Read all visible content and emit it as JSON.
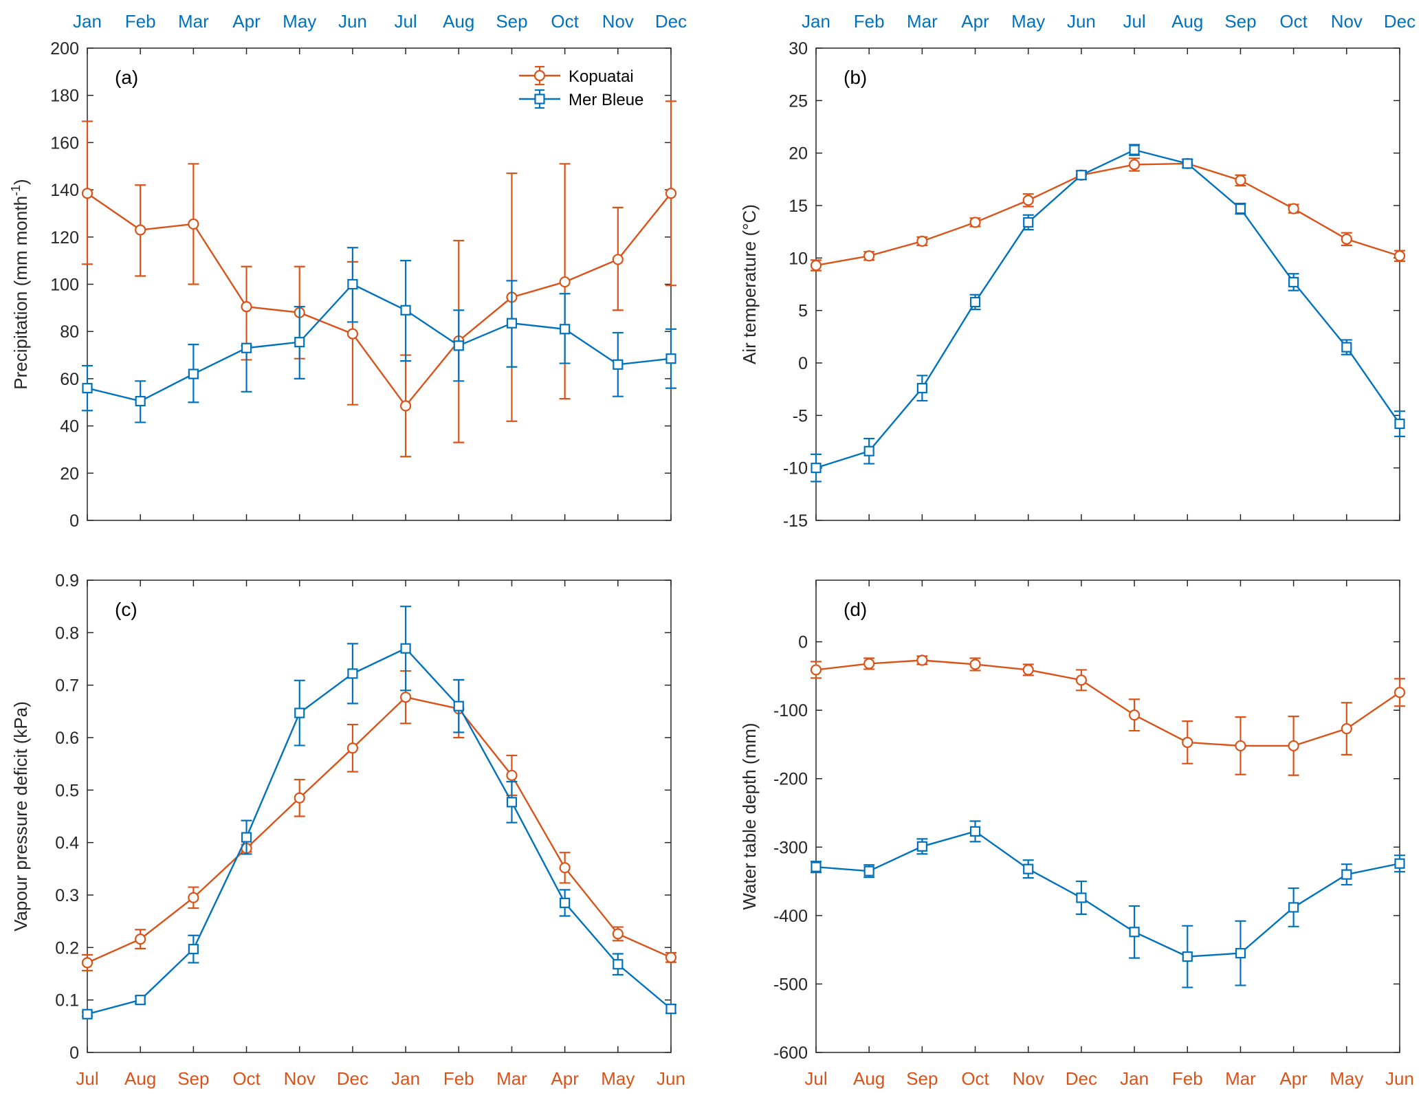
{
  "colors": {
    "kopuatai": "#d95319",
    "merbleue": "#0072bd",
    "axis": "#262626"
  },
  "legend": {
    "placement": "top-right of panel (a)",
    "entries": [
      "Kopuatai",
      "Mer Bleue"
    ]
  },
  "chart_data": [
    {
      "id": "a",
      "type": "line",
      "panel_label": "(a)",
      "ylabel": "Precipitation (mm month",
      "ylabel_sup": "-1",
      "ylabel_close": ")",
      "ylim": [
        0,
        200
      ],
      "yticks": [
        0,
        20,
        40,
        60,
        80,
        100,
        120,
        140,
        160,
        180,
        200
      ],
      "top_ticks": [
        "Jan",
        "Feb",
        "Mar",
        "Apr",
        "May",
        "Jun",
        "Jul",
        "Aug",
        "Sep",
        "Oct",
        "Nov",
        "Dec"
      ],
      "bottom_ticks": [],
      "grid": false,
      "series": [
        {
          "name": "Kopuatai",
          "marker": "circle",
          "values": [
            138.5,
            123,
            125.5,
            90.5,
            88,
            79,
            48.5,
            76,
            94.5,
            101,
            110.5,
            138.5
          ],
          "lower": [
            108.5,
            103.5,
            100,
            68,
            68.5,
            49,
            27,
            33,
            42,
            51.5,
            89,
            99.5
          ],
          "upper": [
            169,
            142,
            151,
            107.5,
            107.5,
            109.5,
            70,
            118.5,
            147,
            151,
            132.5,
            177.5
          ]
        },
        {
          "name": "Mer Bleue",
          "marker": "square",
          "values": [
            56,
            50.5,
            62,
            73,
            75.5,
            100,
            89,
            74,
            83.5,
            81,
            66,
            68.5
          ],
          "lower": [
            46.5,
            41.5,
            50,
            54.5,
            60,
            84,
            67.5,
            59,
            65,
            66.5,
            52.5,
            56
          ],
          "upper": [
            65.5,
            59,
            74.5,
            74,
            90.5,
            115.5,
            110,
            89,
            101.5,
            96,
            79.5,
            81
          ]
        }
      ]
    },
    {
      "id": "b",
      "type": "line",
      "panel_label": "(b)",
      "ylabel": "Air temperature (°C)",
      "ylim": [
        -15,
        30
      ],
      "yticks": [
        -15,
        -10,
        -5,
        0,
        5,
        10,
        15,
        20,
        25,
        30
      ],
      "top_ticks": [
        "Jan",
        "Feb",
        "Mar",
        "Apr",
        "May",
        "Jun",
        "Jul",
        "Aug",
        "Sep",
        "Oct",
        "Nov",
        "Dec"
      ],
      "bottom_ticks": [],
      "grid": false,
      "series": [
        {
          "name": "Kopuatai",
          "marker": "circle",
          "values": [
            9.3,
            10.2,
            11.6,
            13.4,
            15.5,
            17.9,
            18.9,
            19.0,
            17.4,
            14.7,
            11.8,
            10.2
          ],
          "lower": [
            8.8,
            9.8,
            11.2,
            13.0,
            14.9,
            17.5,
            18.3,
            18.6,
            16.9,
            14.3,
            11.2,
            9.7
          ],
          "upper": [
            9.8,
            10.6,
            12.0,
            13.8,
            16.1,
            18.3,
            19.5,
            19.4,
            17.9,
            15.1,
            12.4,
            10.7
          ]
        },
        {
          "name": "Mer Bleue",
          "marker": "square",
          "values": [
            -10.0,
            -8.4,
            -2.4,
            5.8,
            13.4,
            17.9,
            20.3,
            19.0,
            14.7,
            7.7,
            1.5,
            -5.8
          ],
          "lower": [
            -11.3,
            -9.6,
            -3.6,
            5.1,
            12.7,
            17.5,
            19.8,
            18.6,
            14.2,
            6.9,
            0.8,
            -7.0
          ],
          "upper": [
            -8.7,
            -7.2,
            -1.2,
            6.5,
            14.1,
            18.3,
            20.8,
            19.4,
            15.2,
            8.5,
            2.2,
            -4.6
          ]
        }
      ]
    },
    {
      "id": "c",
      "type": "line",
      "panel_label": "(c)",
      "ylabel": "Vapour pressure deficit (kPa)",
      "ylim": [
        0,
        0.9
      ],
      "yticks": [
        0,
        0.1,
        0.2,
        0.3,
        0.4,
        0.5,
        0.6,
        0.7,
        0.8,
        0.9
      ],
      "top_ticks": [],
      "bottom_ticks": [
        "Jul",
        "Aug",
        "Sep",
        "Oct",
        "Nov",
        "Dec",
        "Jan",
        "Feb",
        "Mar",
        "Apr",
        "May",
        "Jun"
      ],
      "grid": false,
      "series": [
        {
          "name": "Kopuatai",
          "marker": "circle",
          "values": [
            0.171,
            0.216,
            0.295,
            0.389,
            0.485,
            0.58,
            0.677,
            0.655,
            0.528,
            0.352,
            0.226,
            0.181
          ],
          "lower": [
            0.156,
            0.198,
            0.275,
            0.382,
            0.45,
            0.535,
            0.627,
            0.6,
            0.49,
            0.323,
            0.213,
            0.172
          ],
          "upper": [
            0.186,
            0.234,
            0.315,
            0.396,
            0.52,
            0.625,
            0.727,
            0.71,
            0.566,
            0.381,
            0.239,
            0.19
          ]
        },
        {
          "name": "Mer Bleue",
          "marker": "square",
          "values": [
            0.073,
            0.1,
            0.197,
            0.41,
            0.647,
            0.722,
            0.77,
            0.66,
            0.477,
            0.285,
            0.168,
            0.083
          ],
          "lower": [
            0.069,
            0.093,
            0.171,
            0.378,
            0.585,
            0.665,
            0.69,
            0.61,
            0.438,
            0.26,
            0.148,
            0.075
          ],
          "upper": [
            0.077,
            0.107,
            0.223,
            0.442,
            0.709,
            0.779,
            0.85,
            0.71,
            0.516,
            0.31,
            0.188,
            0.091
          ]
        }
      ]
    },
    {
      "id": "d",
      "type": "line",
      "panel_label": "(d)",
      "ylabel": "Water table depth (mm)",
      "ylim": [
        -600,
        90
      ],
      "yticks": [
        -600,
        -500,
        -400,
        -300,
        -200,
        -100,
        0
      ],
      "top_ticks": [],
      "bottom_ticks": [
        "Jul",
        "Aug",
        "Sep",
        "Oct",
        "Nov",
        "Dec",
        "Jan",
        "Feb",
        "Mar",
        "Apr",
        "May",
        "Jun"
      ],
      "grid": false,
      "series": [
        {
          "name": "Kopuatai",
          "marker": "circle",
          "values": [
            -41,
            -32,
            -27,
            -33,
            -41,
            -56,
            -107,
            -147,
            -152,
            -152,
            -127,
            -74
          ],
          "lower": [
            -53,
            -40,
            -33,
            -42,
            -49,
            -71,
            -130,
            -178,
            -194,
            -195,
            -165,
            -94
          ],
          "upper": [
            -29,
            -24,
            -21,
            -24,
            -33,
            -41,
            -84,
            -116,
            -110,
            -109,
            -89,
            -54
          ]
        },
        {
          "name": "Mer Bleue",
          "marker": "square",
          "values": [
            -329,
            -335,
            -299,
            -277,
            -332,
            -374,
            -424,
            -460,
            -455,
            -388,
            -340,
            -324
          ],
          "lower": [
            -337,
            -344,
            -310,
            -292,
            -345,
            -398,
            -462,
            -505,
            -502,
            -416,
            -355,
            -336
          ],
          "upper": [
            -321,
            -326,
            -288,
            -262,
            -319,
            -350,
            -386,
            -415,
            -408,
            -360,
            -325,
            -312
          ]
        }
      ]
    }
  ]
}
